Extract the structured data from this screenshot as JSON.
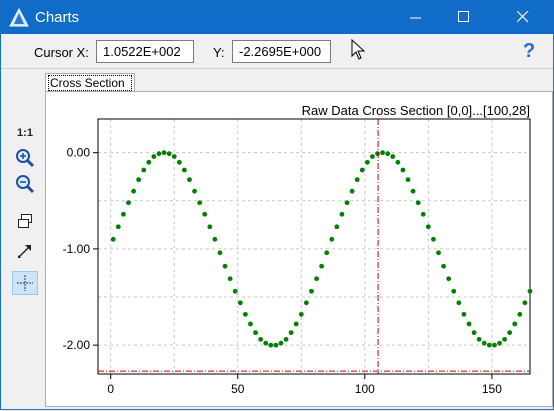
{
  "window": {
    "title": "Charts"
  },
  "toolbar": {
    "cursor_x_label": "Cursor X:",
    "cursor_x_value": "1.0522E+002",
    "y_label": "Y:",
    "y_value": "-2.2695E+000",
    "help": "?"
  },
  "tabs": [
    {
      "label": "Cross Section"
    }
  ],
  "side_tools": {
    "ratio_label": "1:1"
  },
  "icons": [
    "app-icon",
    "minimize-icon",
    "maximize-icon",
    "close-icon",
    "mouse-pointer-icon",
    "help-icon",
    "zoom-in-icon",
    "zoom-out-icon",
    "window-restore-icon",
    "expand-arrow-icon",
    "crosshair-icon"
  ],
  "colors": {
    "titlebar": "#0f6cc8",
    "series": "#008000",
    "cursor": "#cc0000"
  },
  "chart_data": {
    "type": "scatter",
    "title": "Raw Data Cross Section [0,0]...[100,28]",
    "xlim": [
      -5,
      165
    ],
    "ylim": [
      -2.3,
      0.35
    ],
    "xticks": [
      0,
      50,
      100,
      150
    ],
    "yticks": [
      0,
      -1,
      -2
    ],
    "xtick_labels": [
      "0",
      "50",
      "100",
      "150"
    ],
    "ytick_labels": [
      "0.00",
      "-1.00",
      "-2.00"
    ],
    "grid": true,
    "cursor": {
      "x": 105.22,
      "y": -2.2695
    },
    "series": [
      {
        "x": [
          1,
          3,
          5,
          7,
          9,
          11,
          13,
          15,
          17,
          19,
          21,
          23,
          25,
          27,
          29,
          31,
          33,
          35,
          37,
          39,
          41,
          43,
          45,
          47,
          49,
          51,
          53,
          55,
          57,
          59,
          61,
          63,
          65,
          67,
          69,
          71,
          73,
          75,
          77,
          79,
          81,
          83,
          85,
          87,
          89,
          91,
          93,
          95,
          97,
          99,
          101,
          103,
          105,
          107,
          109,
          111,
          113,
          115,
          117,
          119,
          121,
          123,
          125,
          127,
          129,
          131,
          133,
          135,
          137,
          139,
          141,
          143,
          145,
          147,
          149,
          151,
          153,
          155,
          157,
          159,
          161,
          163,
          165
        ],
        "y": [
          -0.9,
          -0.77,
          -0.64,
          -0.52,
          -0.4,
          -0.28,
          -0.18,
          -0.1,
          -0.04,
          -0.01,
          0,
          -0.01,
          -0.04,
          -0.1,
          -0.18,
          -0.28,
          -0.4,
          -0.52,
          -0.64,
          -0.77,
          -0.9,
          -1.04,
          -1.18,
          -1.31,
          -1.44,
          -1.56,
          -1.68,
          -1.78,
          -1.87,
          -1.94,
          -1.98,
          -2,
          -2,
          -1.98,
          -1.94,
          -1.87,
          -1.78,
          -1.68,
          -1.56,
          -1.44,
          -1.31,
          -1.18,
          -1.04,
          -0.9,
          -0.77,
          -0.64,
          -0.52,
          -0.4,
          -0.28,
          -0.18,
          -0.1,
          -0.04,
          -0.01,
          0,
          -0.01,
          -0.04,
          -0.1,
          -0.18,
          -0.28,
          -0.4,
          -0.52,
          -0.64,
          -0.77,
          -0.9,
          -1.04,
          -1.18,
          -1.31,
          -1.44,
          -1.56,
          -1.68,
          -1.78,
          -1.87,
          -1.94,
          -1.98,
          -2,
          -2,
          -1.98,
          -1.94,
          -1.87,
          -1.78,
          -1.68,
          -1.56,
          -1.44
        ]
      }
    ]
  }
}
